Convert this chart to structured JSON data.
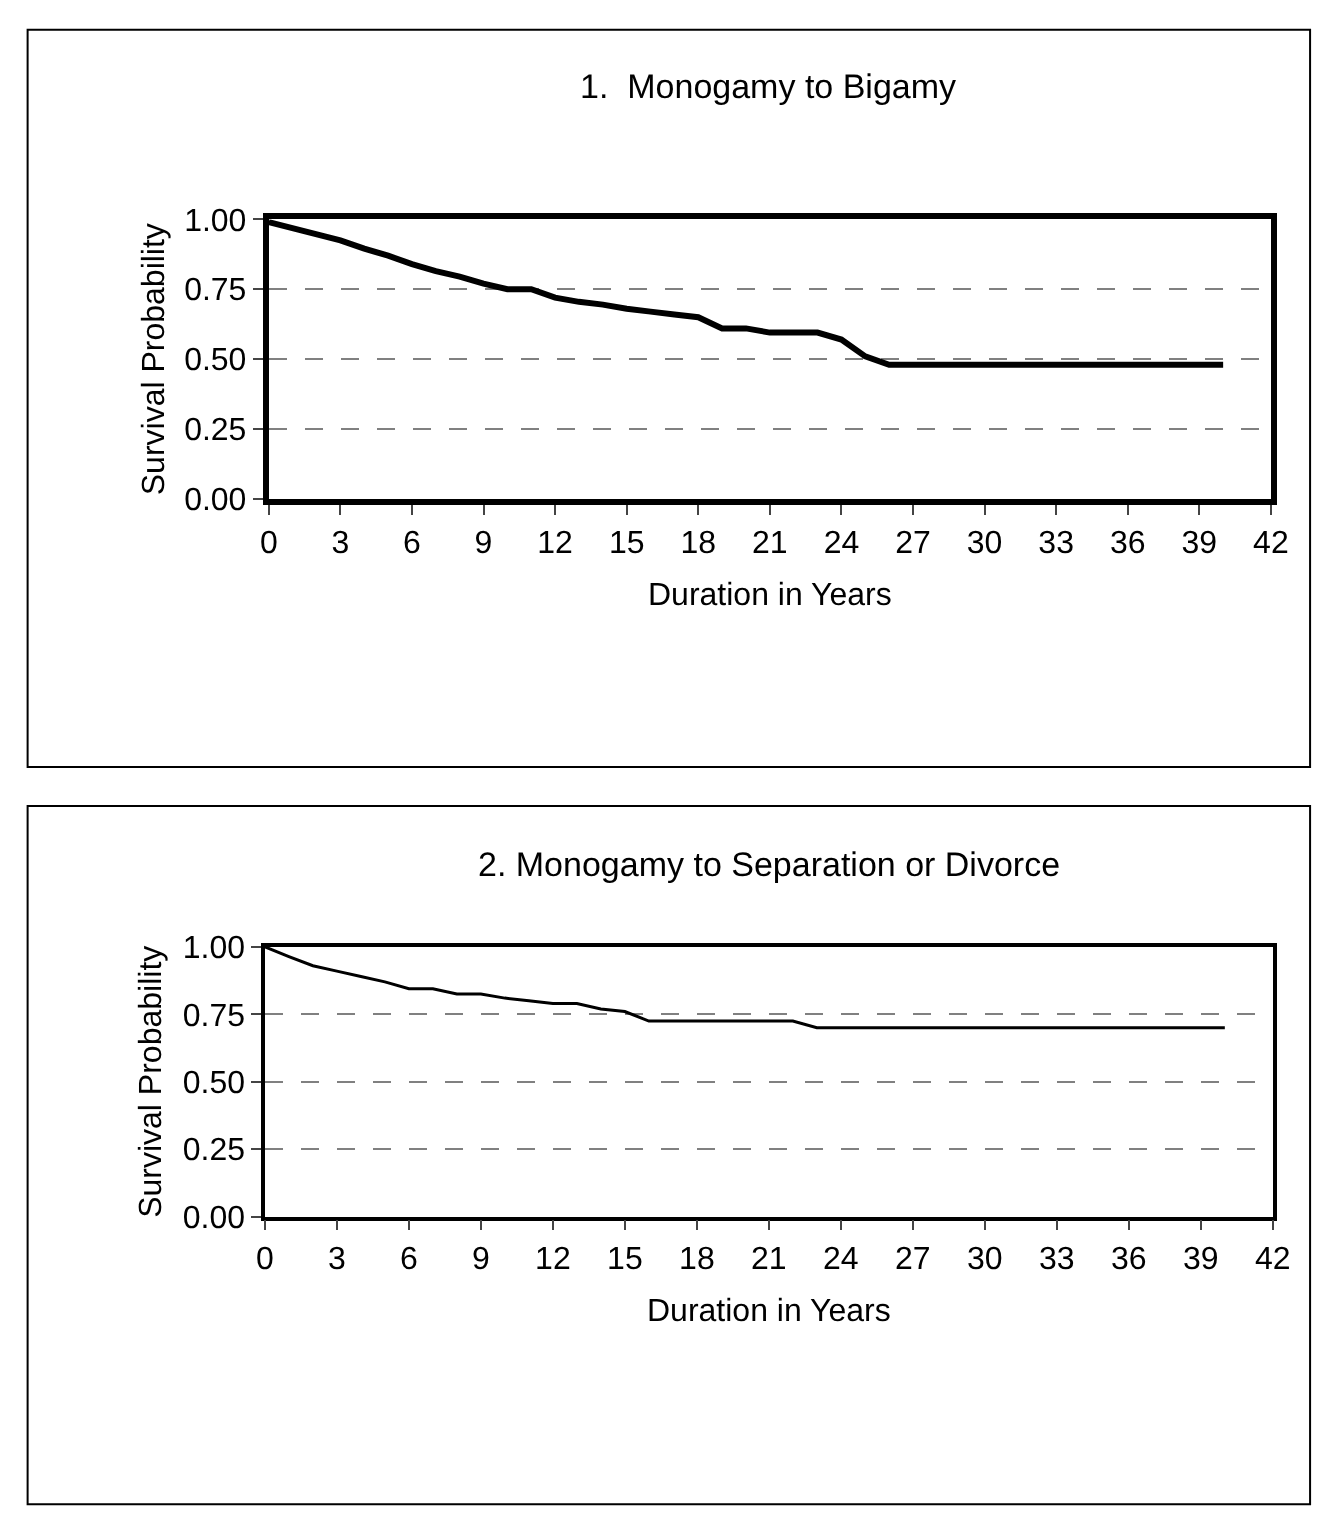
{
  "chart_data": [
    {
      "type": "line",
      "title": "1.  Monogamy to Bigamy",
      "xlabel": "Duration in Years",
      "ylabel": "Survival Probability",
      "color": "#000000",
      "x": [
        0,
        3,
        4,
        5,
        6,
        7,
        8,
        9,
        10,
        11,
        12,
        13,
        14,
        15,
        16,
        17,
        18,
        19,
        20,
        21,
        22,
        23,
        24,
        25,
        26,
        40
      ],
      "values": [
        0.99,
        0.925,
        0.895,
        0.87,
        0.84,
        0.815,
        0.795,
        0.77,
        0.75,
        0.75,
        0.72,
        0.705,
        0.695,
        0.68,
        0.67,
        0.66,
        0.65,
        0.61,
        0.61,
        0.595,
        0.595,
        0.595,
        0.57,
        0.51,
        0.48,
        0.48
      ],
      "xlim": [
        0,
        42
      ],
      "xticks": [
        0,
        3,
        6,
        9,
        12,
        15,
        18,
        21,
        24,
        27,
        30,
        33,
        36,
        39,
        42
      ],
      "ylim": [
        0,
        1
      ],
      "yticks": [
        {
          "value": 0,
          "label": "0.00"
        },
        {
          "value": 0.25,
          "label": "0.25"
        },
        {
          "value": 0.5,
          "label": "0.50"
        },
        {
          "value": 0.75,
          "label": "0.75"
        },
        {
          "value": 1,
          "label": "1.00"
        }
      ],
      "grid": "y"
    },
    {
      "type": "line",
      "title": "2. Monogamy to Separation or Divorce",
      "xlabel": "Duration in Years",
      "ylabel": "Survival Probability",
      "color": "#000000",
      "x": [
        0,
        1,
        2,
        3,
        4,
        5,
        6,
        7,
        8,
        9,
        10,
        11,
        12,
        13,
        14,
        15,
        16,
        22,
        23,
        40
      ],
      "values": [
        1.0,
        0.964,
        0.93,
        0.91,
        0.89,
        0.87,
        0.845,
        0.845,
        0.825,
        0.825,
        0.81,
        0.8,
        0.79,
        0.79,
        0.77,
        0.76,
        0.725,
        0.725,
        0.7,
        0.7
      ],
      "xlim": [
        0,
        42
      ],
      "xticks": [
        0,
        3,
        6,
        9,
        12,
        15,
        18,
        21,
        24,
        27,
        30,
        33,
        36,
        39,
        42
      ],
      "ylim": [
        0,
        1
      ],
      "yticks": [
        {
          "value": 0,
          "label": "0.00"
        },
        {
          "value": 0.25,
          "label": "0.25"
        },
        {
          "value": 0.5,
          "label": "0.50"
        },
        {
          "value": 0.75,
          "label": "0.75"
        },
        {
          "value": 1,
          "label": "1.00"
        }
      ],
      "grid": "y"
    }
  ]
}
